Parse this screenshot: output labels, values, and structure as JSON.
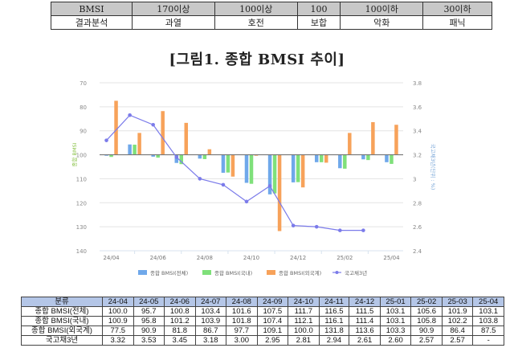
{
  "legend_table": {
    "header": [
      "BMSI",
      "170이상",
      "100이상",
      "100",
      "100이하",
      "30이하"
    ],
    "row": [
      "결과분석",
      "과열",
      "호전",
      "보합",
      "악화",
      "패닉"
    ]
  },
  "figure_title": "[그림1. 종합 BMSI 추이]",
  "chart_data": {
    "type": "bar",
    "title": "[그림1. 종합 BMSI 추이]",
    "categories": [
      "24-04",
      "24-05",
      "24-06",
      "24-07",
      "24-08",
      "24-09",
      "24-10",
      "24-11",
      "24-12",
      "25-01",
      "25-02",
      "25-03",
      "25-04"
    ],
    "x_tick_labels": [
      "24/04",
      "24/06",
      "24/08",
      "24/10",
      "24/12",
      "25/02",
      "25/04"
    ],
    "series": [
      {
        "name": "종합 BMSI(전체)",
        "type": "bar",
        "axis": "left",
        "color": "#6fa8ea",
        "values": [
          100.0,
          95.7,
          100.8,
          103.4,
          101.6,
          107.5,
          111.7,
          116.5,
          111.5,
          103.1,
          105.6,
          101.9,
          103.1
        ]
      },
      {
        "name": "종합 BMSI(국내)",
        "type": "bar",
        "axis": "left",
        "color": "#7fe07a",
        "values": [
          100.9,
          95.8,
          101.2,
          103.9,
          101.8,
          107.4,
          112.1,
          116.1,
          111.4,
          103.1,
          105.8,
          102.2,
          103.8
        ]
      },
      {
        "name": "종합 BMSI(외국계)",
        "type": "bar",
        "axis": "left",
        "color": "#f7a25a",
        "values": [
          77.5,
          90.9,
          81.8,
          86.7,
          97.7,
          109.1,
          100.0,
          131.8,
          113.6,
          103.3,
          90.9,
          86.4,
          87.5
        ]
      },
      {
        "name": "국고채3년",
        "type": "line",
        "axis": "right",
        "color": "#7b7bea",
        "values": [
          3.32,
          3.53,
          3.45,
          3.18,
          3.0,
          2.95,
          2.81,
          2.94,
          2.61,
          2.6,
          2.57,
          2.57,
          null
        ]
      }
    ],
    "left_axis": {
      "label": "종합 BMSI",
      "ticks": [
        70,
        80,
        90,
        100,
        110,
        120,
        130,
        140
      ],
      "range": [
        70,
        140
      ],
      "inverted": true,
      "baseline": 100
    },
    "right_axis": {
      "label": "국고채3년(단위 : %)",
      "ticks": [
        3.8,
        3.6,
        3.4,
        3.2,
        3,
        2.8,
        2.6,
        2.4
      ],
      "range": [
        2.4,
        3.8
      ]
    },
    "grid": true,
    "legend_position": "bottom"
  },
  "chart": {
    "left_axis_label": "종합 BMSI",
    "right_axis_label": "국고채3년(단위 : %)",
    "left_ticks": [
      "70",
      "80",
      "90",
      "100",
      "110",
      "120",
      "130",
      "140"
    ],
    "right_ticks": [
      "3.8",
      "3.6",
      "3.4",
      "3.2",
      "3",
      "2.8",
      "2.6",
      "2.4"
    ],
    "x_ticks": [
      "24/04",
      "24/06",
      "24/08",
      "24/10",
      "24/12",
      "25/02",
      "25/04"
    ],
    "legend": [
      "종합 BMSI(전체)",
      "종합 BMSI(국내)",
      "종합 BMSI(외국계)",
      "국고채3년"
    ]
  },
  "data_table": {
    "header": [
      "분류",
      "24-04",
      "24-05",
      "24-06",
      "24-07",
      "24-08",
      "24-09",
      "24-10",
      "24-11",
      "24-12",
      "25-01",
      "25-02",
      "25-03",
      "25-04"
    ],
    "rows": [
      [
        "종합 BMSI(전체)",
        "100.0",
        "95.7",
        "100.8",
        "103.4",
        "101.6",
        "107.5",
        "111.7",
        "116.5",
        "111.5",
        "103.1",
        "105.6",
        "101.9",
        "103.1"
      ],
      [
        "종합 BMSI(국내)",
        "100.9",
        "95.8",
        "101.2",
        "103.9",
        "101.8",
        "107.4",
        "112.1",
        "116.1",
        "111.4",
        "103.1",
        "105.8",
        "102.2",
        "103.8"
      ],
      [
        "종합 BMSI(외국계)",
        "77.5",
        "90.9",
        "81.8",
        "86.7",
        "97.7",
        "109.1",
        "100.0",
        "131.8",
        "113.6",
        "103.3",
        "90.9",
        "86.4",
        "87.5"
      ],
      [
        "국고채3년",
        "3.32",
        "3.53",
        "3.45",
        "3.18",
        "3.00",
        "2.95",
        "2.81",
        "2.94",
        "2.61",
        "2.60",
        "2.57",
        "2.57",
        "-"
      ]
    ]
  }
}
